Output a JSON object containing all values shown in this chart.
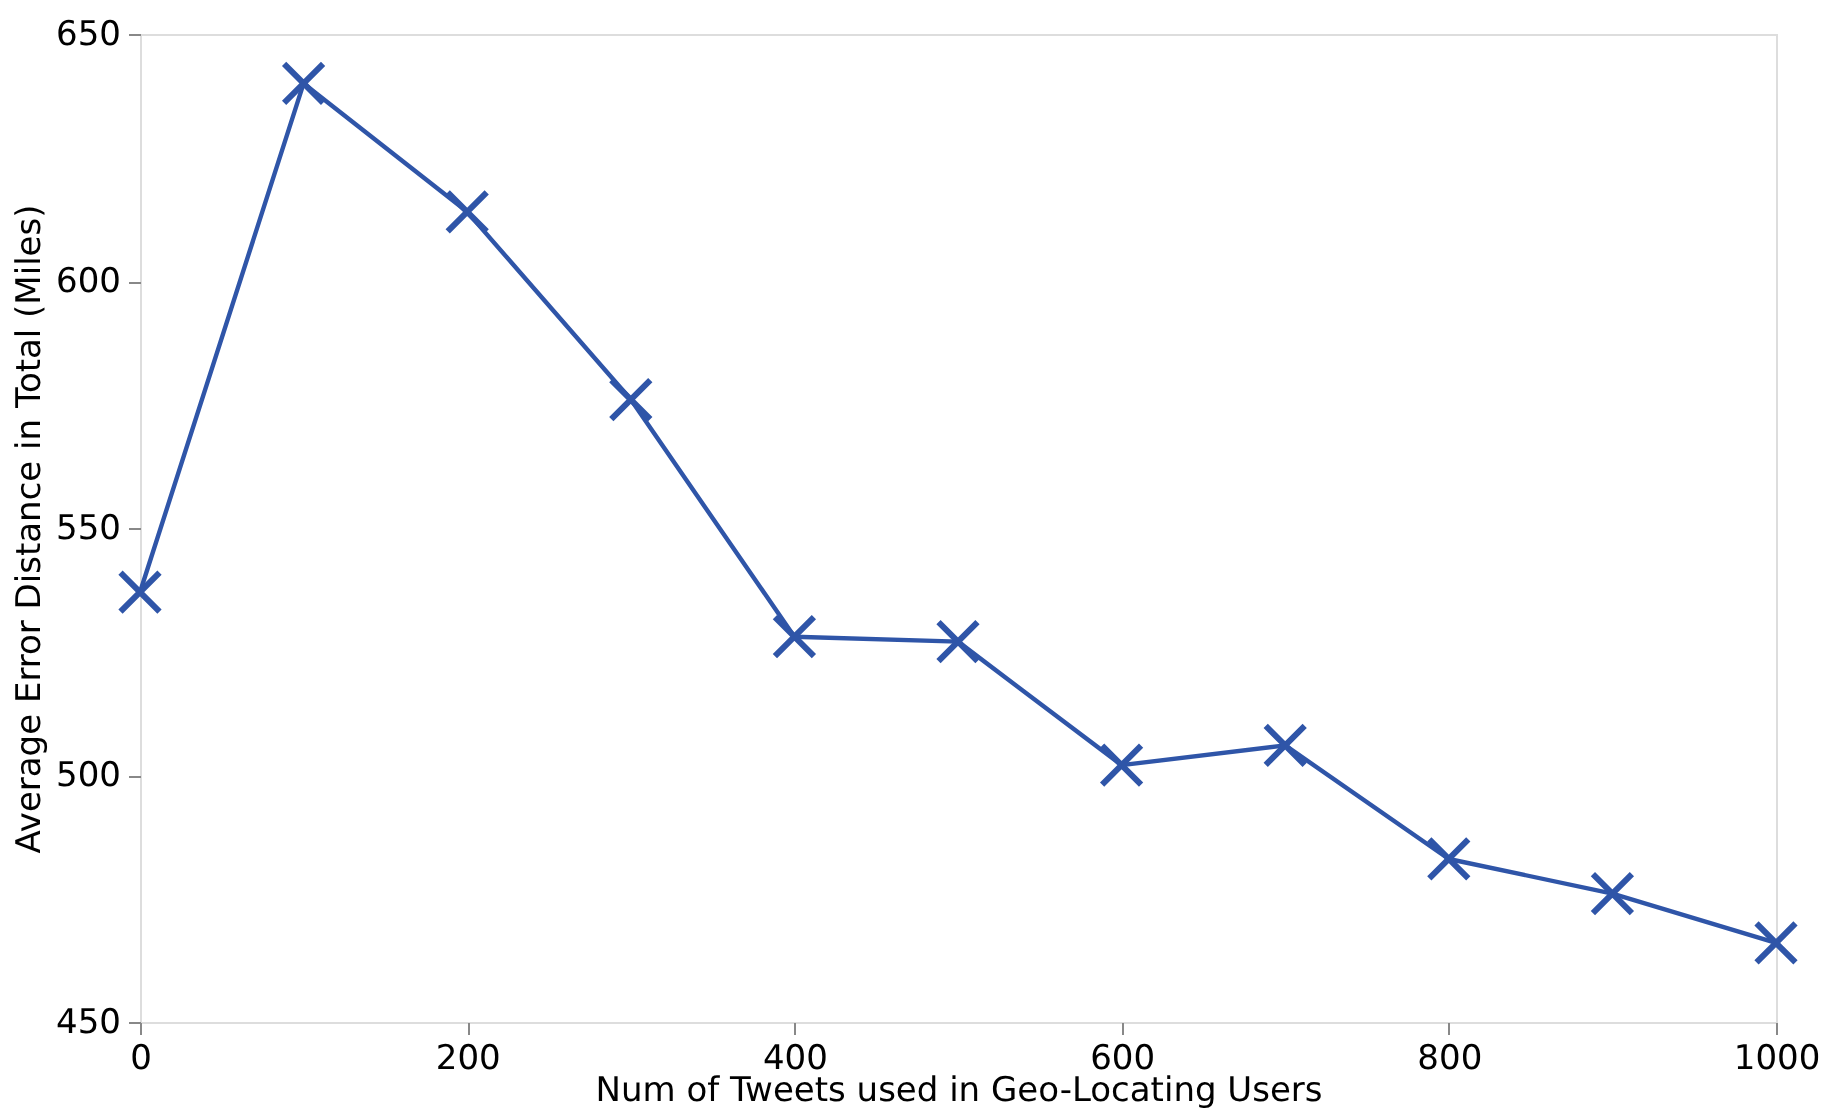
{
  "chart_data": {
    "type": "line",
    "xlabel": "Num of Tweets used in Geo-Locating Users",
    "ylabel": "Average Error Distance in Total (Miles)",
    "x": [
      0,
      100,
      200,
      300,
      400,
      500,
      600,
      700,
      800,
      900,
      1000
    ],
    "series": [
      {
        "color": "#2f55a8",
        "values": [
          537,
          640,
          614,
          576,
          528,
          527,
          502,
          506,
          483,
          476,
          466
        ]
      }
    ],
    "xlim": [
      0,
      1000
    ],
    "ylim": [
      450,
      650
    ],
    "xticks": [
      0,
      200,
      400,
      600,
      800,
      1000
    ],
    "yticks": [
      450,
      500,
      550,
      600,
      650
    ],
    "marker": "cross",
    "line_style": "solid",
    "grid": false
  }
}
